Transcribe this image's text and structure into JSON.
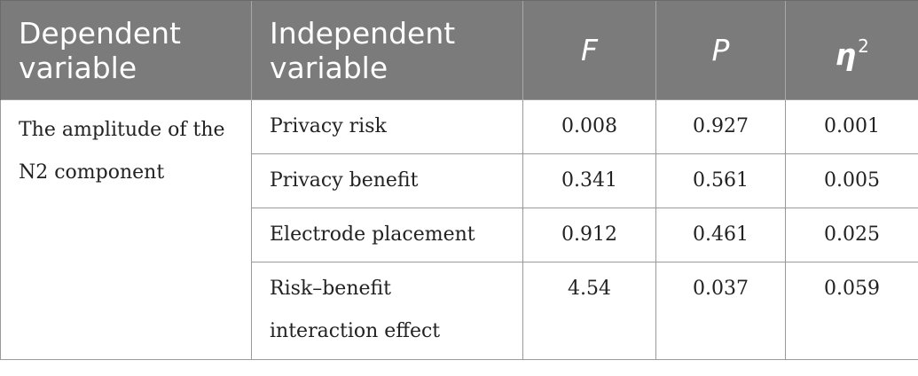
{
  "table": {
    "headers": {
      "dependent": "Dependent variable",
      "independent": "Independent variable",
      "f": "F",
      "p": "P",
      "eta": "η",
      "eta_sup": "2"
    },
    "dependent_variable": "The amplitude of the N2 component",
    "rows": [
      {
        "independent": "Privacy risk",
        "f": "0.008",
        "p": "0.927",
        "eta2": "0.001"
      },
      {
        "independent": "Privacy benefit",
        "f": "0.341",
        "p": "0.561",
        "eta2": "0.005"
      },
      {
        "independent": "Electrode placement",
        "f": "0.912",
        "p": "0.461",
        "eta2": "0.025"
      },
      {
        "independent": "Risk–benefit interaction effect",
        "f": "4.54",
        "p": "0.037",
        "eta2": "0.059"
      }
    ]
  }
}
